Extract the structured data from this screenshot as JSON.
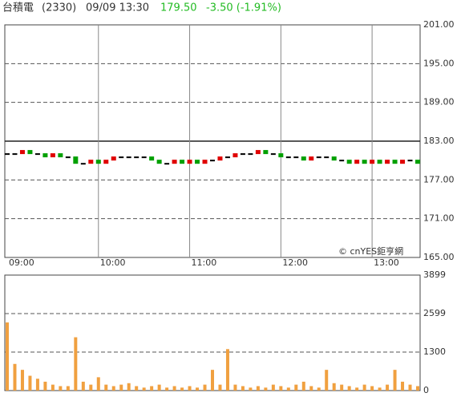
{
  "header": {
    "name": "台積電",
    "code": "(2330)",
    "datetime": "09/09 13:30",
    "price": "179.50",
    "change": "-3.50 (-1.91%)"
  },
  "chart_data": [
    {
      "type": "candlestick",
      "x": [
        "09:00",
        "09:05",
        "09:10",
        "09:15",
        "09:20",
        "09:25",
        "09:30",
        "09:35",
        "09:40",
        "09:45",
        "09:50",
        "09:55",
        "10:00",
        "10:05",
        "10:10",
        "10:15",
        "10:20",
        "10:25",
        "10:30",
        "10:35",
        "10:40",
        "10:45",
        "10:50",
        "10:55",
        "11:00",
        "11:05",
        "11:10",
        "11:15",
        "11:20",
        "11:25",
        "11:30",
        "11:35",
        "11:40",
        "11:45",
        "11:50",
        "11:55",
        "12:00",
        "12:05",
        "12:10",
        "12:15",
        "12:20",
        "12:25",
        "12:30",
        "12:35",
        "12:40",
        "12:45",
        "12:50",
        "12:55",
        "13:00",
        "13:05",
        "13:10",
        "13:15",
        "13:20",
        "13:25",
        "13:30"
      ],
      "open": [
        181,
        181,
        181,
        181.5,
        181,
        181,
        180.5,
        181,
        180.5,
        180.5,
        179.5,
        179.5,
        180,
        179.5,
        180,
        180.5,
        180.5,
        180.5,
        180.5,
        180.5,
        180,
        179.5,
        179.5,
        180,
        179.5,
        180,
        179.5,
        180,
        180,
        180.5,
        180.5,
        181,
        181,
        181,
        181.5,
        181,
        181,
        180.5,
        180.5,
        180.5,
        180,
        180.5,
        180.5,
        180.5,
        180,
        180,
        179.5,
        180,
        179.5,
        180,
        179.5,
        180,
        179.5,
        180,
        180
      ],
      "close": [
        181,
        181,
        181.5,
        181,
        181,
        180.5,
        181,
        180.5,
        180.5,
        179.5,
        179.5,
        180,
        179.5,
        180,
        180.5,
        180.5,
        180.5,
        180.5,
        180.5,
        180,
        179.5,
        179.5,
        180,
        179.5,
        180,
        179.5,
        180,
        180,
        180.5,
        180.5,
        181,
        181,
        181,
        181.5,
        181,
        181,
        180.5,
        180.5,
        180.5,
        180,
        180.5,
        180.5,
        180.5,
        180,
        180,
        179.5,
        180,
        179.5,
        180,
        179.5,
        180,
        179.5,
        180,
        180,
        179.5
      ],
      "ylim": [
        165,
        201
      ],
      "yticks": [
        {
          "value": 201,
          "label": "201.00"
        },
        {
          "value": 195,
          "label": "195.00"
        },
        {
          "value": 189,
          "label": "189.00"
        },
        {
          "value": 183,
          "label": "183.00"
        },
        {
          "value": 177,
          "label": "177.00"
        },
        {
          "value": 171,
          "label": "171.00"
        },
        {
          "value": 165,
          "label": "165.00"
        }
      ],
      "prev_close": 183,
      "grid": true,
      "xticks": [
        "09:00",
        "10:00",
        "11:00",
        "12:00",
        "13:00"
      ],
      "up_color": "#e00000",
      "down_color": "#00a000",
      "flat_color": "#000000",
      "watermark": "© cnYES鉅亨網"
    },
    {
      "type": "bar",
      "x": [
        "09:00",
        "09:05",
        "09:10",
        "09:15",
        "09:20",
        "09:25",
        "09:30",
        "09:35",
        "09:40",
        "09:45",
        "09:50",
        "09:55",
        "10:00",
        "10:05",
        "10:10",
        "10:15",
        "10:20",
        "10:25",
        "10:30",
        "10:35",
        "10:40",
        "10:45",
        "10:50",
        "10:55",
        "11:00",
        "11:05",
        "11:10",
        "11:15",
        "11:20",
        "11:25",
        "11:30",
        "11:35",
        "11:40",
        "11:45",
        "11:50",
        "11:55",
        "12:00",
        "12:05",
        "12:10",
        "12:15",
        "12:20",
        "12:25",
        "12:30",
        "12:35",
        "12:40",
        "12:45",
        "12:50",
        "12:55",
        "13:00",
        "13:05",
        "13:10",
        "13:15",
        "13:20",
        "13:25",
        "13:30"
      ],
      "values": [
        2300,
        900,
        700,
        500,
        400,
        300,
        200,
        150,
        150,
        1800,
        300,
        200,
        450,
        200,
        150,
        200,
        250,
        150,
        100,
        150,
        200,
        100,
        150,
        100,
        150,
        100,
        200,
        700,
        200,
        1400,
        200,
        150,
        100,
        150,
        100,
        200,
        150,
        100,
        200,
        300,
        150,
        100,
        700,
        250,
        200,
        150,
        100,
        200,
        150,
        100,
        200,
        700,
        300,
        200,
        150
      ],
      "ylim": [
        0,
        3899
      ],
      "yticks": [
        3899,
        2599,
        1300,
        0
      ],
      "grid": true,
      "color": "#f0a040"
    }
  ]
}
